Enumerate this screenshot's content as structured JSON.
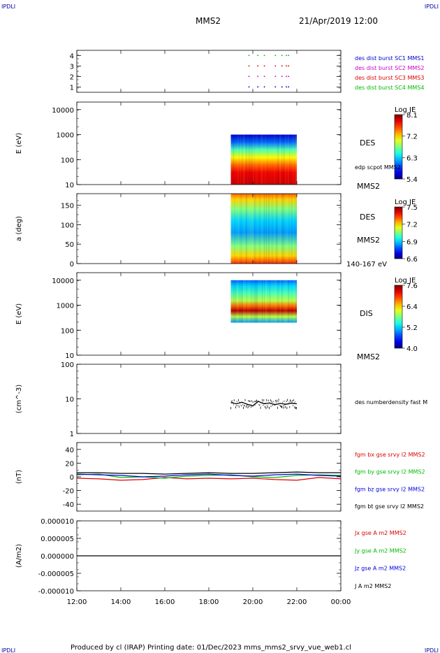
{
  "header": {
    "left_tag": "IPDLI",
    "right_tag": "IPDLI",
    "title": "MMS2",
    "date": "21/Apr/2019 12:00"
  },
  "footer": {
    "text": "Produced by cl (IRAP)   Printing date: 01/Dec/2023   mms_mms2_srvy_vue_web1.cl",
    "left_tag": "IPDLI",
    "right_tag": "IPDLI"
  },
  "colors": {
    "mms1": "#0000cc",
    "mms2": "#cc00cc",
    "mms3": "#dd0000",
    "mms4": "#00bb00",
    "bx": "#dd0000",
    "by": "#00bb00",
    "bz": "#0000dd",
    "bt": "#000000"
  },
  "chart_data": [
    {
      "type": "scatter",
      "ylim": [
        0.5,
        4.5
      ],
      "yticks": [
        "1",
        "2",
        "3",
        "4"
      ],
      "legend": [
        {
          "label": "des dist burst SC1 MMS1",
          "color": "#0000cc"
        },
        {
          "label": "des dist burst SC2 MMS2",
          "color": "#cc00cc"
        },
        {
          "label": "des dist burst SC3 MMS3",
          "color": "#dd0000"
        },
        {
          "label": "des dist burst SC4 MMS4",
          "color": "#00bb00"
        }
      ],
      "series": [
        {
          "name": "des dist burst SC1 MMS1",
          "y": 1,
          "x": [
            19.8,
            20.2,
            20.5,
            21.0,
            21.3,
            21.5,
            21.6
          ]
        },
        {
          "name": "des dist burst SC2 MMS2",
          "y": 2,
          "x": [
            19.8,
            20.2,
            20.5,
            21.0,
            21.3,
            21.5,
            21.6
          ]
        },
        {
          "name": "des dist burst SC3 MMS3",
          "y": 3,
          "x": [
            19.8,
            20.2,
            20.5,
            21.0,
            21.3,
            21.5,
            21.6
          ]
        },
        {
          "name": "des dist burst SC4 MMS4",
          "y": 4,
          "x": [
            19.8,
            20.2,
            20.5,
            21.0,
            21.3,
            21.5,
            21.6
          ]
        }
      ]
    },
    {
      "type": "heatmap",
      "ylabel": "E (eV)",
      "yscale": "log",
      "ylim": [
        10,
        20000
      ],
      "yticks": [
        "10",
        "100",
        "1000",
        "10000"
      ],
      "x_range": [
        19.0,
        22.0
      ],
      "y_range": [
        10,
        1000
      ],
      "label": "DES",
      "extra_label": "edp scpot MMS2",
      "spacecraft": "MMS2",
      "colorbar": {
        "title": "Log JE",
        "min": 5.4,
        "max": 8.1,
        "ticks": [
          "8.1",
          "7.2",
          "6.3",
          "5.4"
        ]
      },
      "profile": [
        {
          "y": 10,
          "v": 7.9
        },
        {
          "y": 30,
          "v": 7.8
        },
        {
          "y": 60,
          "v": 7.5
        },
        {
          "y": 120,
          "v": 7.1
        },
        {
          "y": 250,
          "v": 6.6
        },
        {
          "y": 500,
          "v": 6.0
        },
        {
          "y": 1000,
          "v": 5.6
        }
      ]
    },
    {
      "type": "heatmap",
      "ylabel": "a (deg)",
      "ylim": [
        0,
        180
      ],
      "yticks": [
        "0",
        "50",
        "100",
        "150"
      ],
      "x_range": [
        19.0,
        22.0
      ],
      "y_range": [
        0,
        180
      ],
      "label": "DES",
      "spacecraft": "MMS2",
      "energy_range": "140-167 eV",
      "colorbar": {
        "title": "Log JE",
        "min": 6.6,
        "max": 7.5,
        "ticks": [
          "7.5",
          "7.2",
          "6.9",
          "6.6"
        ]
      },
      "profile": [
        {
          "y": 0,
          "v": 7.35
        },
        {
          "y": 20,
          "v": 7.2
        },
        {
          "y": 45,
          "v": 7.05
        },
        {
          "y": 80,
          "v": 6.85
        },
        {
          "y": 110,
          "v": 6.9
        },
        {
          "y": 140,
          "v": 7.05
        },
        {
          "y": 165,
          "v": 7.2
        },
        {
          "y": 180,
          "v": 7.3
        }
      ]
    },
    {
      "type": "heatmap",
      "ylabel": "E (eV)",
      "yscale": "log",
      "ylim": [
        10,
        20000
      ],
      "yticks": [
        "10",
        "100",
        "1000",
        "10000"
      ],
      "x_range": [
        19.0,
        22.0
      ],
      "y_range": [
        200,
        10000
      ],
      "label": "DIS",
      "spacecraft": "MMS2",
      "colorbar": {
        "title": "Log JE",
        "min": 4.0,
        "max": 7.6,
        "ticks": [
          "7.6",
          "6.4",
          "5.2",
          "4.0"
        ]
      },
      "profile": [
        {
          "y": 200,
          "v": 5.0
        },
        {
          "y": 350,
          "v": 6.0
        },
        {
          "y": 600,
          "v": 7.4
        },
        {
          "y": 900,
          "v": 6.8
        },
        {
          "y": 1500,
          "v": 6.0
        },
        {
          "y": 3000,
          "v": 5.6
        },
        {
          "y": 6000,
          "v": 5.2
        },
        {
          "y": 10000,
          "v": 4.8
        }
      ]
    },
    {
      "type": "line",
      "ylabel": "(cm^-3)",
      "yscale": "log",
      "ylim": [
        1,
        100
      ],
      "yticks": [
        "1",
        "10",
        "100"
      ],
      "legend": [
        {
          "label": "des numberdensity fast M",
          "color": "#000000"
        }
      ],
      "series": [
        {
          "name": "des numberdensity fast M",
          "color": "#000000",
          "x": [
            19.0,
            19.25,
            19.5,
            19.75,
            20.0,
            20.25,
            20.5,
            20.75,
            21.0,
            21.25,
            21.5,
            21.75,
            22.0
          ],
          "y": [
            7.8,
            7.2,
            8.0,
            7.0,
            6.3,
            8.5,
            7.2,
            7.6,
            6.8,
            7.4,
            7.0,
            7.5,
            7.2
          ]
        }
      ]
    },
    {
      "type": "line",
      "ylabel": "(nT)",
      "ylim": [
        -50,
        50
      ],
      "yticks": [
        "-40",
        "-20",
        "0",
        "20",
        "40"
      ],
      "legend": [
        {
          "label": "fgm bx gse srvy l2 MMS2",
          "color": "#dd0000"
        },
        {
          "label": "fgm by gse srvy l2 MMS2",
          "color": "#00bb00"
        },
        {
          "label": "fgm bz gse srvy l2 MMS2",
          "color": "#0000dd"
        },
        {
          "label": "fgm bt gse srvy l2 MMS2",
          "color": "#000000"
        }
      ],
      "x": [
        12,
        13,
        14,
        15,
        16,
        17,
        18,
        19,
        20,
        21,
        22,
        23,
        24
      ],
      "series": [
        {
          "name": "fgm bx gse srvy l2 MMS2",
          "color": "#dd0000",
          "values": [
            -2,
            -3,
            -5,
            -4,
            -1,
            -3,
            -2,
            -3,
            -2,
            -4,
            -5,
            -1,
            -3
          ]
        },
        {
          "name": "fgm by gse srvy l2 MMS2",
          "color": "#00bb00",
          "values": [
            3,
            4,
            -1,
            0,
            -2,
            1,
            2,
            3,
            0,
            -1,
            2,
            3,
            2
          ]
        },
        {
          "name": "fgm bz gse srvy l2 MMS2",
          "color": "#0000dd",
          "values": [
            4,
            3,
            2,
            0,
            1,
            3,
            4,
            2,
            1,
            3,
            4,
            2,
            1
          ]
        },
        {
          "name": "fgm bt gse srvy l2 MMS2",
          "color": "#000000",
          "values": [
            6,
            6,
            5,
            5,
            4,
            5,
            6,
            5,
            5,
            6,
            7,
            6,
            6
          ]
        }
      ]
    },
    {
      "type": "line",
      "ylabel": "(A/m2)",
      "ylim": [
        -1e-05,
        1e-05
      ],
      "yticks": [
        "-0.000010",
        "-0.000005",
        "0.000000",
        "0.000005",
        "0.000010"
      ],
      "legend": [
        {
          "label": "Jx gse A m2 MMS2",
          "color": "#dd0000"
        },
        {
          "label": "Jy gse A m2 MMS2",
          "color": "#00bb00"
        },
        {
          "label": "Jz gse A m2 MMS2",
          "color": "#0000dd"
        },
        {
          "label": "J A m2 MMS2",
          "color": "#000000"
        }
      ],
      "x": [
        12,
        24
      ],
      "series": [
        {
          "name": "J A m2 MMS2",
          "color": "#000000",
          "values": [
            0,
            0
          ]
        }
      ]
    }
  ],
  "time_axis": {
    "xlim": [
      12,
      24
    ],
    "ticks": [
      "12:00",
      "14:00",
      "16:00",
      "18:00",
      "20:00",
      "22:00",
      "00:00"
    ]
  }
}
